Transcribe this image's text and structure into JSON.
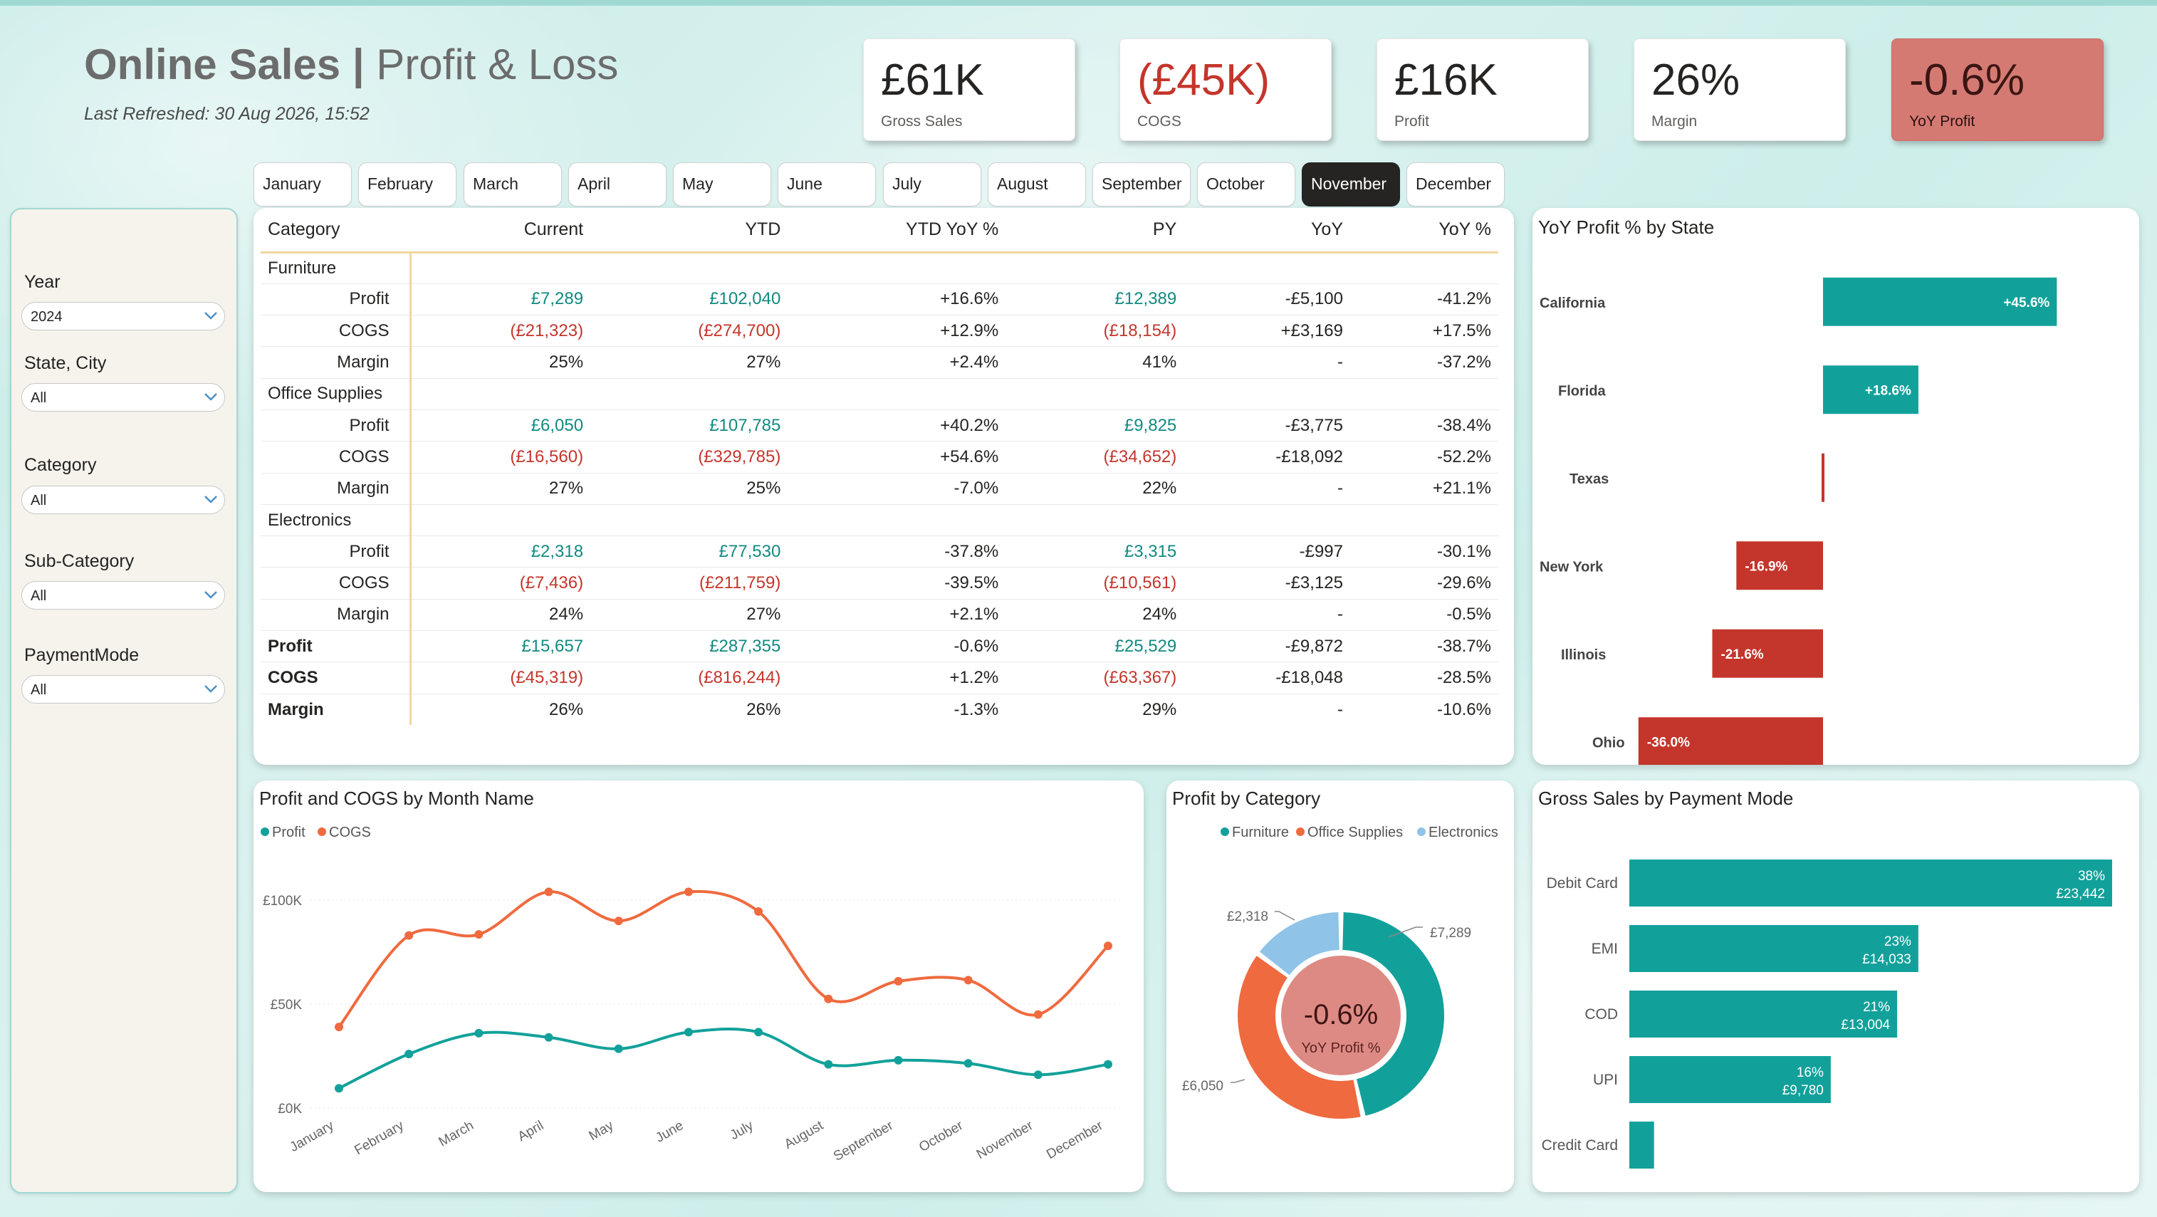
{
  "header": {
    "title_bold": "Online Sales |",
    "title_rest": "Profit & Loss",
    "refresh": "Last Refreshed: 30 Aug 2026, 15:52"
  },
  "kpis": [
    {
      "value": "£61K",
      "label": "Gross Sales"
    },
    {
      "value": "(£45K)",
      "label": "COGS"
    },
    {
      "value": "£16K",
      "label": "Profit"
    },
    {
      "value": "26%",
      "label": "Margin"
    },
    {
      "value": "-0.6%",
      "label": "YoY Profit"
    }
  ],
  "months": [
    "January",
    "February",
    "March",
    "April",
    "May",
    "June",
    "July",
    "August",
    "September",
    "October",
    "November",
    "December"
  ],
  "selected_month": "November",
  "slicers": [
    {
      "label": "Year",
      "value": "2024"
    },
    {
      "label": "State, City",
      "value": "All"
    },
    {
      "label": "Category",
      "value": "All"
    },
    {
      "label": "Sub-Category",
      "value": "All"
    },
    {
      "label": "PaymentMode",
      "value": "All"
    }
  ],
  "matrix": {
    "headers": [
      "Category",
      "Current",
      "YTD",
      "YTD YoY %",
      "PY",
      "YoY",
      "YoY %"
    ],
    "groups": [
      {
        "name": "Furniture",
        "rows": [
          {
            "metric": "Profit",
            "values": [
              "£7,289",
              "£102,040",
              "+16.6%",
              "£12,389",
              "-£5,100",
              "-41.2%"
            ]
          },
          {
            "metric": "COGS",
            "values": [
              "(£21,323)",
              "(£274,700)",
              "+12.9%",
              "(£18,154)",
              "+£3,169",
              "+17.5%"
            ]
          },
          {
            "metric": "Margin",
            "values": [
              "25%",
              "27%",
              "+2.4%",
              "41%",
              "-",
              "-37.2%"
            ]
          }
        ]
      },
      {
        "name": "Office Supplies",
        "rows": [
          {
            "metric": "Profit",
            "values": [
              "£6,050",
              "£107,785",
              "+40.2%",
              "£9,825",
              "-£3,775",
              "-38.4%"
            ]
          },
          {
            "metric": "COGS",
            "values": [
              "(£16,560)",
              "(£329,785)",
              "+54.6%",
              "(£34,652)",
              "-£18,092",
              "-52.2%"
            ]
          },
          {
            "metric": "Margin",
            "values": [
              "27%",
              "25%",
              "-7.0%",
              "22%",
              "-",
              "+21.1%"
            ]
          }
        ]
      },
      {
        "name": "Electronics",
        "rows": [
          {
            "metric": "Profit",
            "values": [
              "£2,318",
              "£77,530",
              "-37.8%",
              "£3,315",
              "-£997",
              "-30.1%"
            ]
          },
          {
            "metric": "COGS",
            "values": [
              "(£7,436)",
              "(£211,759)",
              "-39.5%",
              "(£10,561)",
              "-£3,125",
              "-29.6%"
            ]
          },
          {
            "metric": "Margin",
            "values": [
              "24%",
              "27%",
              "+2.1%",
              "24%",
              "-",
              "-0.5%"
            ]
          }
        ]
      }
    ],
    "totals": [
      {
        "metric": "Profit",
        "values": [
          "£15,657",
          "£287,355",
          "-0.6%",
          "£25,529",
          "-£9,872",
          "-38.7%"
        ]
      },
      {
        "metric": "COGS",
        "values": [
          "(£45,319)",
          "(£816,244)",
          "+1.2%",
          "(£63,367)",
          "-£18,048",
          "-28.5%"
        ]
      },
      {
        "metric": "Margin",
        "values": [
          "26%",
          "26%",
          "-1.3%",
          "29%",
          "-",
          "-10.6%"
        ]
      }
    ]
  },
  "colors": {
    "teal": "#12a19a",
    "red": "#c4352b",
    "orange": "#ef6a3f",
    "light_blue": "#8fc3e8",
    "pink_center": "#de8a84"
  },
  "chart_data": [
    {
      "type": "bar",
      "title": "YoY Profit % by State",
      "categories": [
        "California",
        "Florida",
        "Texas",
        "New York",
        "Illinois",
        "Ohio"
      ],
      "values": [
        45.6,
        18.6,
        0,
        -16.9,
        -21.6,
        -36.0
      ],
      "labels": [
        "+45.6%",
        "+18.6%",
        "",
        "-16.9%",
        "-21.6%",
        "-36.0%"
      ]
    },
    {
      "type": "line",
      "title": "Profit and COGS by Month Name",
      "x": [
        "January",
        "February",
        "March",
        "April",
        "May",
        "June",
        "July",
        "August",
        "September",
        "October",
        "November",
        "December"
      ],
      "yticks": [
        "£0K",
        "£50K",
        "£100K"
      ],
      "ylim": [
        0,
        100000
      ],
      "legend": "top-left",
      "series": [
        {
          "name": "Profit",
          "values": [
            9500,
            26000,
            36000,
            34000,
            28500,
            36500,
            36500,
            21000,
            23000,
            21500,
            16000,
            21000
          ]
        },
        {
          "name": "COGS",
          "values": [
            39000,
            83000,
            83500,
            104000,
            90000,
            104000,
            94500,
            52500,
            61000,
            61500,
            45000,
            78000
          ]
        }
      ]
    },
    {
      "type": "pie",
      "title": "Profit by Category",
      "categories": [
        "Furniture",
        "Office Supplies",
        "Electronics"
      ],
      "values": [
        7289,
        6050,
        2318
      ],
      "labels": [
        "£7,289",
        "£6,050",
        "£2,318"
      ],
      "center_value": "-0.6%",
      "center_label": "YoY Profit %"
    },
    {
      "type": "bar",
      "title": "Gross Sales by Payment Mode",
      "categories": [
        "Debit Card",
        "EMI",
        "COD",
        "UPI",
        "Credit Card"
      ],
      "values": [
        23442,
        14033,
        13004,
        9780,
        1200
      ],
      "pct_labels": [
        "38%",
        "23%",
        "21%",
        "16%",
        ""
      ],
      "value_labels": [
        "£23,442",
        "£14,033",
        "£13,004",
        "£9,780",
        ""
      ]
    }
  ]
}
